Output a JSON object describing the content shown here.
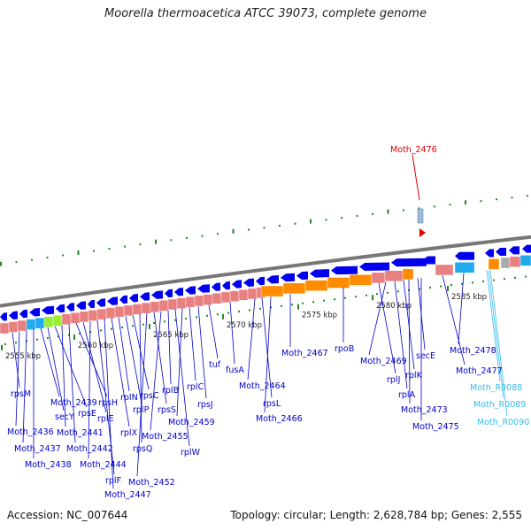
{
  "title": "Moorella thermoacetica ATCC 39073, complete genome",
  "footer": {
    "accession": "Accession: NC_007644",
    "summary": "Topology: circular; Length: 2,628,784 bp; Genes: 2,555"
  },
  "highlight": {
    "name": "Moth_2476",
    "color": "#dd0000"
  },
  "colors": {
    "gene_label": "#0000cc",
    "rna_label": "#33bbee",
    "protein_arrow": "#0000ee",
    "backbone": "#777777",
    "cog_pink": "#e88080",
    "cog_orange": "#ff8c00",
    "cog_cyan": "#22aaee",
    "cog_green": "#99ee33",
    "cog_gray": "#aaaaaa",
    "tick_green": "#228822"
  },
  "scale": {
    "unit": "kbp",
    "ticks": [
      {
        "label": "2555 kbp"
      },
      {
        "label": "2560 kbp"
      },
      {
        "label": "2565 kbp"
      },
      {
        "label": "2570 kbp"
      },
      {
        "label": "2575 kbp"
      },
      {
        "label": "2580 kbp"
      },
      {
        "label": "2585 kbp"
      }
    ]
  },
  "genes": [
    {
      "name": "rpsM"
    },
    {
      "name": "Moth_2436"
    },
    {
      "name": "Moth_2437"
    },
    {
      "name": "Moth_2438"
    },
    {
      "name": "Moth_2439"
    },
    {
      "name": "secY"
    },
    {
      "name": "rpsE"
    },
    {
      "name": "Moth_2441"
    },
    {
      "name": "Moth_2442"
    },
    {
      "name": "rpsH"
    },
    {
      "name": "rplE"
    },
    {
      "name": "Moth_2444"
    },
    {
      "name": "rplF"
    },
    {
      "name": "Moth_2447"
    },
    {
      "name": "rplX"
    },
    {
      "name": "rplN"
    },
    {
      "name": "rplP"
    },
    {
      "name": "rpsC"
    },
    {
      "name": "rpsQ"
    },
    {
      "name": "Moth_2452"
    },
    {
      "name": "rpsS"
    },
    {
      "name": "Moth_2455"
    },
    {
      "name": "rplB"
    },
    {
      "name": "rplW"
    },
    {
      "name": "Moth_2459"
    },
    {
      "name": "rplC"
    },
    {
      "name": "rpsJ"
    },
    {
      "name": "tuf"
    },
    {
      "name": "fusA"
    },
    {
      "name": "Moth_2464"
    },
    {
      "name": "rpsL"
    },
    {
      "name": "Moth_2466"
    },
    {
      "name": "Moth_2467"
    },
    {
      "name": "rpoB"
    },
    {
      "name": "rplJ"
    },
    {
      "name": "Moth_2469"
    },
    {
      "name": "rplA"
    },
    {
      "name": "rplK"
    },
    {
      "name": "Moth_2473"
    },
    {
      "name": "secE"
    },
    {
      "name": "Moth_2475"
    },
    {
      "name": "Moth_2477"
    },
    {
      "name": "Moth_2478"
    }
  ],
  "rna_genes": [
    {
      "name": "Moth_R0088"
    },
    {
      "name": "Moth_R0089"
    },
    {
      "name": "Moth_R0090"
    }
  ]
}
